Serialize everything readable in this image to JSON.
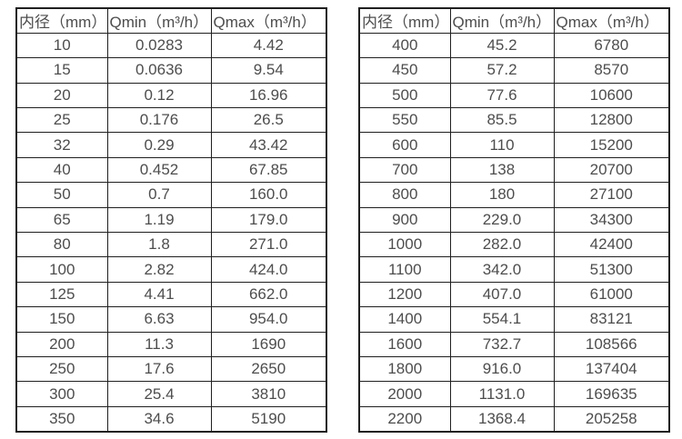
{
  "page": {
    "background": "#ffffff"
  },
  "colors": {
    "border": "#1f1f1f",
    "text": "#4d4d4d",
    "cell_background": "#ffffff"
  },
  "tables": [
    {
      "name": "flow-range-table-small-diameters",
      "headers": [
        "内径（mm）",
        "Qmin（m³/h）",
        "Qmax（m³/h）"
      ],
      "rows": [
        [
          "10",
          "0.0283",
          "4.42"
        ],
        [
          "15",
          "0.0636",
          "9.54"
        ],
        [
          "20",
          "0.12",
          "16.96"
        ],
        [
          "25",
          "0.176",
          "26.5"
        ],
        [
          "32",
          "0.29",
          "43.42"
        ],
        [
          "40",
          "0.452",
          "67.85"
        ],
        [
          "50",
          "0.7",
          "160.0"
        ],
        [
          "65",
          "1.19",
          "179.0"
        ],
        [
          "80",
          "1.8",
          "271.0"
        ],
        [
          "100",
          "2.82",
          "424.0"
        ],
        [
          "125",
          "4.41",
          "662.0"
        ],
        [
          "150",
          "6.63",
          "954.0"
        ],
        [
          "200",
          "11.3",
          "1690"
        ],
        [
          "250",
          "17.6",
          "2650"
        ],
        [
          "300",
          "25.4",
          "3810"
        ],
        [
          "350",
          "34.6",
          "5190"
        ]
      ]
    },
    {
      "name": "flow-range-table-large-diameters",
      "headers": [
        "内径（mm）",
        "Qmin（m³/h）",
        "Qmax（m³/h）"
      ],
      "rows": [
        [
          "400",
          "45.2",
          "6780"
        ],
        [
          "450",
          "57.2",
          "8570"
        ],
        [
          "500",
          "77.6",
          "10600"
        ],
        [
          "550",
          "85.5",
          "12800"
        ],
        [
          "600",
          "110",
          "15200"
        ],
        [
          "700",
          "138",
          "20700"
        ],
        [
          "800",
          "180",
          "27100"
        ],
        [
          "900",
          "229.0",
          "34300"
        ],
        [
          "1000",
          "282.0",
          "42400"
        ],
        [
          "1100",
          "342.0",
          "51300"
        ],
        [
          "1200",
          "407.0",
          "61000"
        ],
        [
          "1400",
          "554.1",
          "83121"
        ],
        [
          "1600",
          "732.7",
          "108566"
        ],
        [
          "1800",
          "916.0",
          "137404"
        ],
        [
          "2000",
          "1131.0",
          "169635"
        ],
        [
          "2200",
          "1368.4",
          "205258"
        ]
      ]
    }
  ]
}
